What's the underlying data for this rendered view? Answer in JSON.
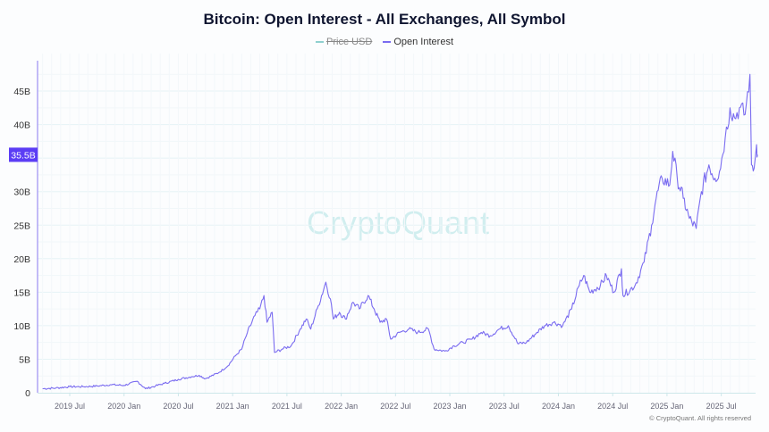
{
  "chart_data": {
    "type": "line",
    "title": "Bitcoin: Open Interest - All Exchanges, All Symbol",
    "legend": [
      {
        "name": "Price USD",
        "color": "#8fd0cf",
        "hidden": true
      },
      {
        "name": "Open Interest",
        "color": "#7a6cf0",
        "hidden": false
      }
    ],
    "legend_position": "top-center",
    "ylim": [
      0,
      50
    ],
    "y_ticks": [
      {
        "value": 0,
        "label": "0"
      },
      {
        "value": 5,
        "label": "5B"
      },
      {
        "value": 10,
        "label": "10B"
      },
      {
        "value": 15,
        "label": "15B"
      },
      {
        "value": 20,
        "label": "20B"
      },
      {
        "value": 25,
        "label": "25B"
      },
      {
        "value": 30,
        "label": "30B"
      },
      {
        "value": 40,
        "label": "40B"
      },
      {
        "value": 45,
        "label": "45B"
      }
    ],
    "current_value": {
      "value": 35.5,
      "label": "35.5B"
    },
    "x_ticks": [
      {
        "date": "2019-07",
        "label": "2019 Jul"
      },
      {
        "date": "2020-01",
        "label": "2020 Jan"
      },
      {
        "date": "2020-07",
        "label": "2020 Jul"
      },
      {
        "date": "2021-01",
        "label": "2021 Jan"
      },
      {
        "date": "2021-07",
        "label": "2021 Jul"
      },
      {
        "date": "2022-01",
        "label": "2022 Jan"
      },
      {
        "date": "2022-07",
        "label": "2022 Jul"
      },
      {
        "date": "2023-01",
        "label": "2023 Jan"
      },
      {
        "date": "2023-07",
        "label": "2023 Jul"
      },
      {
        "date": "2024-01",
        "label": "2024 Jan"
      },
      {
        "date": "2024-07",
        "label": "2024 Jul"
      },
      {
        "date": "2025-01",
        "label": "2025 Jan"
      },
      {
        "date": "2025-07",
        "label": "2025 Jul"
      }
    ],
    "unit": "B USD",
    "series": [
      {
        "name": "Open Interest",
        "points": [
          [
            "2019-04-01",
            0.6
          ],
          [
            "2019-05-15",
            0.7
          ],
          [
            "2019-07-01",
            0.9
          ],
          [
            "2019-08-15",
            0.9
          ],
          [
            "2019-10-01",
            1.0
          ],
          [
            "2019-11-15",
            1.2
          ],
          [
            "2020-01-01",
            1.1
          ],
          [
            "2020-02-15",
            1.7
          ],
          [
            "2020-03-12",
            0.6
          ],
          [
            "2020-04-15",
            1.0
          ],
          [
            "2020-05-15",
            1.4
          ],
          [
            "2020-07-01",
            2.0
          ],
          [
            "2020-08-15",
            2.4
          ],
          [
            "2020-09-10",
            2.6
          ],
          [
            "2020-10-01",
            2.1
          ],
          [
            "2020-11-15",
            3.0
          ],
          [
            "2020-12-15",
            4.0
          ],
          [
            "2021-01-10",
            5.5
          ],
          [
            "2021-02-01",
            6.5
          ],
          [
            "2021-02-20",
            9.0
          ],
          [
            "2021-03-15",
            11.5
          ],
          [
            "2021-04-01",
            12.5
          ],
          [
            "2021-04-15",
            14.5
          ],
          [
            "2021-04-25",
            10.5
          ],
          [
            "2021-05-12",
            12.0
          ],
          [
            "2021-05-20",
            6.0
          ],
          [
            "2021-06-15",
            6.5
          ],
          [
            "2021-07-15",
            7.0
          ],
          [
            "2021-08-15",
            9.5
          ],
          [
            "2021-09-05",
            11.0
          ],
          [
            "2021-09-20",
            9.5
          ],
          [
            "2021-10-15",
            13.0
          ],
          [
            "2021-11-10",
            16.5
          ],
          [
            "2021-11-25",
            14.0
          ],
          [
            "2021-12-05",
            11.0
          ],
          [
            "2021-12-25",
            12.0
          ],
          [
            "2022-01-15",
            11.0
          ],
          [
            "2022-02-10",
            13.5
          ],
          [
            "2022-03-01",
            12.5
          ],
          [
            "2022-03-30",
            14.5
          ],
          [
            "2022-04-20",
            12.5
          ],
          [
            "2022-05-10",
            10.5
          ],
          [
            "2022-06-01",
            11.0
          ],
          [
            "2022-06-15",
            8.0
          ],
          [
            "2022-07-15",
            9.0
          ],
          [
            "2022-08-15",
            9.5
          ],
          [
            "2022-09-15",
            9.0
          ],
          [
            "2022-10-20",
            9.5
          ],
          [
            "2022-11-09",
            6.5
          ],
          [
            "2022-12-15",
            6.2
          ],
          [
            "2023-01-15",
            7.0
          ],
          [
            "2023-02-15",
            7.5
          ],
          [
            "2023-03-15",
            8.0
          ],
          [
            "2023-04-15",
            9.0
          ],
          [
            "2023-05-15",
            8.5
          ],
          [
            "2023-06-15",
            9.5
          ],
          [
            "2023-07-15",
            10.0
          ],
          [
            "2023-08-17",
            7.3
          ],
          [
            "2023-09-15",
            7.5
          ],
          [
            "2023-10-20",
            9.0
          ],
          [
            "2023-11-15",
            10.0
          ],
          [
            "2023-12-15",
            10.5
          ],
          [
            "2024-01-15",
            10.0
          ],
          [
            "2024-02-15",
            12.5
          ],
          [
            "2024-03-10",
            16.0
          ],
          [
            "2024-03-25",
            17.5
          ],
          [
            "2024-04-15",
            15.0
          ],
          [
            "2024-05-20",
            16.0
          ],
          [
            "2024-06-10",
            17.5
          ],
          [
            "2024-07-05",
            15.0
          ],
          [
            "2024-07-30",
            18.5
          ],
          [
            "2024-08-05",
            14.5
          ],
          [
            "2024-09-15",
            16.0
          ],
          [
            "2024-10-15",
            19.5
          ],
          [
            "2024-11-10",
            25.0
          ],
          [
            "2024-11-25",
            29.0
          ],
          [
            "2024-12-15",
            32.0
          ],
          [
            "2025-01-10",
            31.0
          ],
          [
            "2025-01-20",
            36.0
          ],
          [
            "2025-02-05",
            32.0
          ],
          [
            "2025-02-25",
            29.0
          ],
          [
            "2025-03-15",
            26.0
          ],
          [
            "2025-04-08",
            24.5
          ],
          [
            "2025-04-25",
            30.0
          ],
          [
            "2025-05-20",
            34.0
          ],
          [
            "2025-06-10",
            32.0
          ],
          [
            "2025-06-25",
            33.0
          ],
          [
            "2025-07-14",
            38.0
          ],
          [
            "2025-07-30",
            42.5
          ],
          [
            "2025-08-15",
            41.0
          ],
          [
            "2025-09-01",
            42.5
          ],
          [
            "2025-09-20",
            41.5
          ],
          [
            "2025-10-06",
            47.5
          ],
          [
            "2025-10-11",
            34.0
          ],
          [
            "2025-10-20",
            33.5
          ],
          [
            "2025-10-28",
            37.0
          ],
          [
            "2025-11-01",
            35.5
          ]
        ]
      }
    ]
  },
  "watermark": "CryptoQuant",
  "copyright": "© CryptoQuant. All rights reserved"
}
